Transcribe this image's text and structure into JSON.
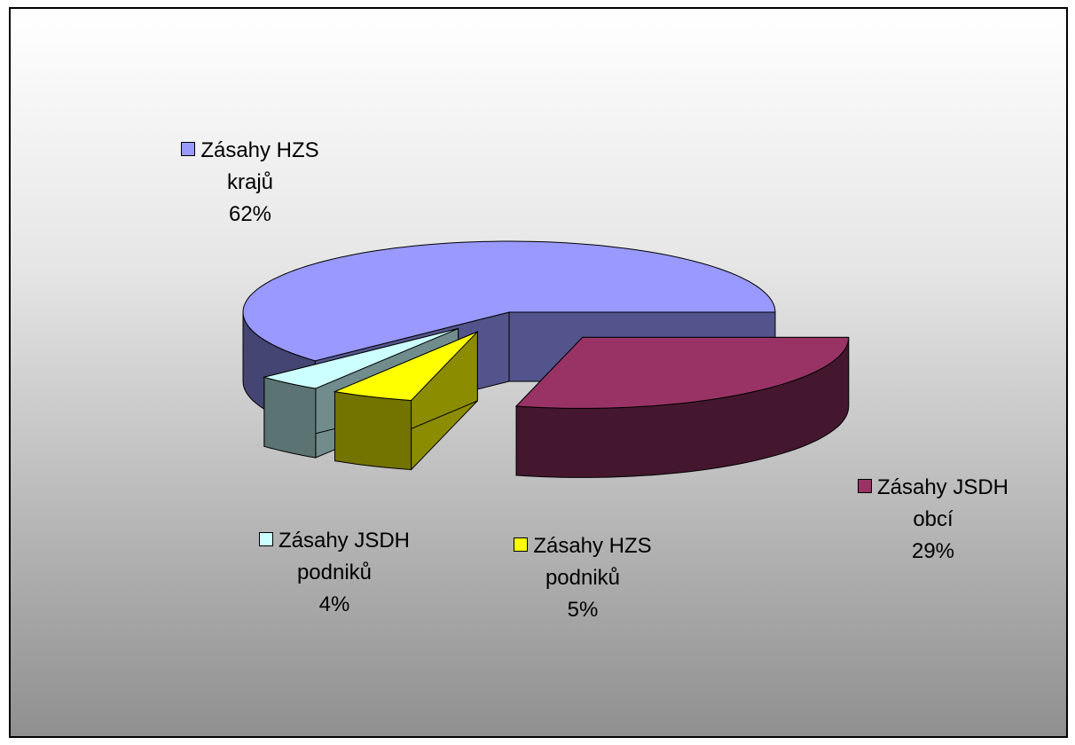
{
  "chart_data": {
    "type": "pie",
    "categories": [
      "Zásahy HZS krajů",
      "Zásahy JSDH obcí",
      "Zásahy HZS podniků",
      "Zásahy JSDH podniků"
    ],
    "values": [
      62,
      29,
      5,
      4
    ],
    "value_labels": [
      "62%",
      "29%",
      "5%",
      "4%"
    ],
    "colors": [
      "#9999ff",
      "#993366",
      "#ffff00",
      "#ccffff"
    ]
  }
}
